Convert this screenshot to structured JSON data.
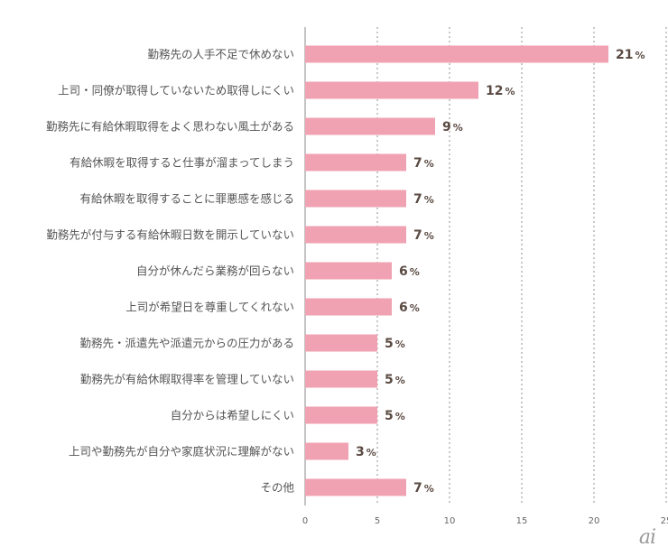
{
  "chart_data": {
    "type": "bar",
    "orientation": "horizontal",
    "categories": [
      "勤務先の人手不足で休めない",
      "上司・同僚が取得していないため取得しにくい",
      "勤務先に有給休暇取得をよく思わない風土がある",
      "有給休暇を取得すると仕事が溜まってしまう",
      "有給休暇を取得することに罪悪感を感じる",
      "勤務先が付与する有給休暇日数を開示していない",
      "自分が休んだら業務が回らない",
      "上司が希望日を尊重してくれない",
      "勤務先・派遣先や派遣元からの圧力がある",
      "勤務先が有給休暇取得率を管理していない",
      "自分からは希望しにくい",
      "上司や勤務先が自分や家庭状況に理解がない",
      "その他"
    ],
    "values": [
      21,
      12,
      9,
      7,
      7,
      7,
      6,
      6,
      5,
      5,
      5,
      3,
      7
    ],
    "value_labels": [
      "21",
      "12",
      "9",
      "7",
      "7",
      "7",
      "6",
      "6",
      "5",
      "5",
      "5",
      "3",
      "7"
    ],
    "value_suffix": "%",
    "xlim": [
      0,
      25
    ],
    "xticks": [
      "0",
      "5",
      "10",
      "15",
      "20",
      "25"
    ],
    "grid": true,
    "grid_style": "dotted vertical",
    "bar_color": "#f0a2b2",
    "label_color": "#5a4a42",
    "title": "",
    "xlabel": "",
    "ylabel": ""
  },
  "watermark": {
    "text": "ai",
    "color": "#9a9a9a"
  }
}
